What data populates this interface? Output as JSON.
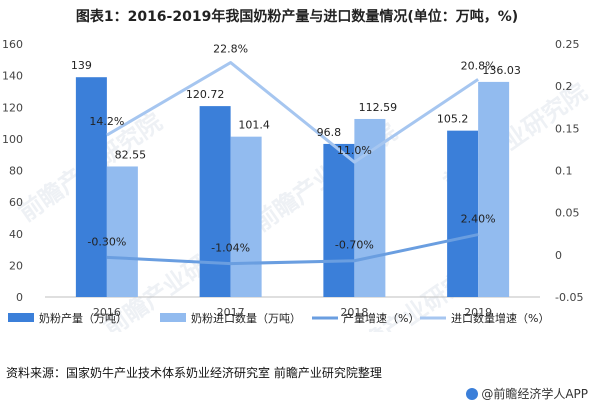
{
  "title": "图表1：2016-2019年我国奶粉产量与进口数量情况(单位：万吨，%)",
  "source": "资料来源：国家奶牛产业技术体系奶业经济研究室 前瞻产业研究院整理",
  "brand": "@前瞻经济学人APP",
  "watermark": "前瞻产业研究院",
  "colors": {
    "production_bar": "#3b7fd9",
    "import_bar": "#92bbef",
    "production_growth": "#6a9ee0",
    "import_growth": "#a6c6f0",
    "axis": "#bfbfbf",
    "tick": "#444444"
  },
  "chart_data": {
    "type": "bar",
    "categories": [
      "2016",
      "2017",
      "2018",
      "2019"
    ],
    "y_left": {
      "min": 0,
      "max": 160,
      "ticks": [
        "0",
        "20",
        "40",
        "60",
        "80",
        "100",
        "120",
        "140",
        "160"
      ]
    },
    "y_right": {
      "min": -0.05,
      "max": 0.25,
      "ticks": [
        "-0.05",
        "0",
        "0.05",
        "0.1",
        "0.15",
        "0.2",
        "0.25"
      ]
    },
    "series": [
      {
        "name": "奶粉产量（万吨）",
        "type": "bar",
        "axis": "left",
        "values": [
          139,
          120.72,
          96.8,
          105.2
        ],
        "labels": [
          "139",
          "120.72",
          "96.8",
          "105.2"
        ]
      },
      {
        "name": "奶粉进口数量（万吨）",
        "type": "bar",
        "axis": "left",
        "values": [
          82.55,
          101.4,
          112.59,
          136.03
        ],
        "labels": [
          "82.55",
          "101.4",
          "112.59",
          "136.03"
        ]
      },
      {
        "name": "产量增速（%）",
        "type": "line",
        "axis": "right",
        "values": [
          -0.003,
          -0.0104,
          -0.007,
          0.024
        ],
        "labels": [
          "-0.30%",
          "-1.04%",
          "-0.70%",
          "2.40%"
        ]
      },
      {
        "name": "进口数量增速（%）",
        "type": "line",
        "axis": "right",
        "values": [
          0.142,
          0.228,
          0.11,
          0.208
        ],
        "labels": [
          "14.2%",
          "22.8%",
          "11.0%",
          "20.8%"
        ]
      }
    ],
    "legend_position": "bottom",
    "grid": false
  }
}
